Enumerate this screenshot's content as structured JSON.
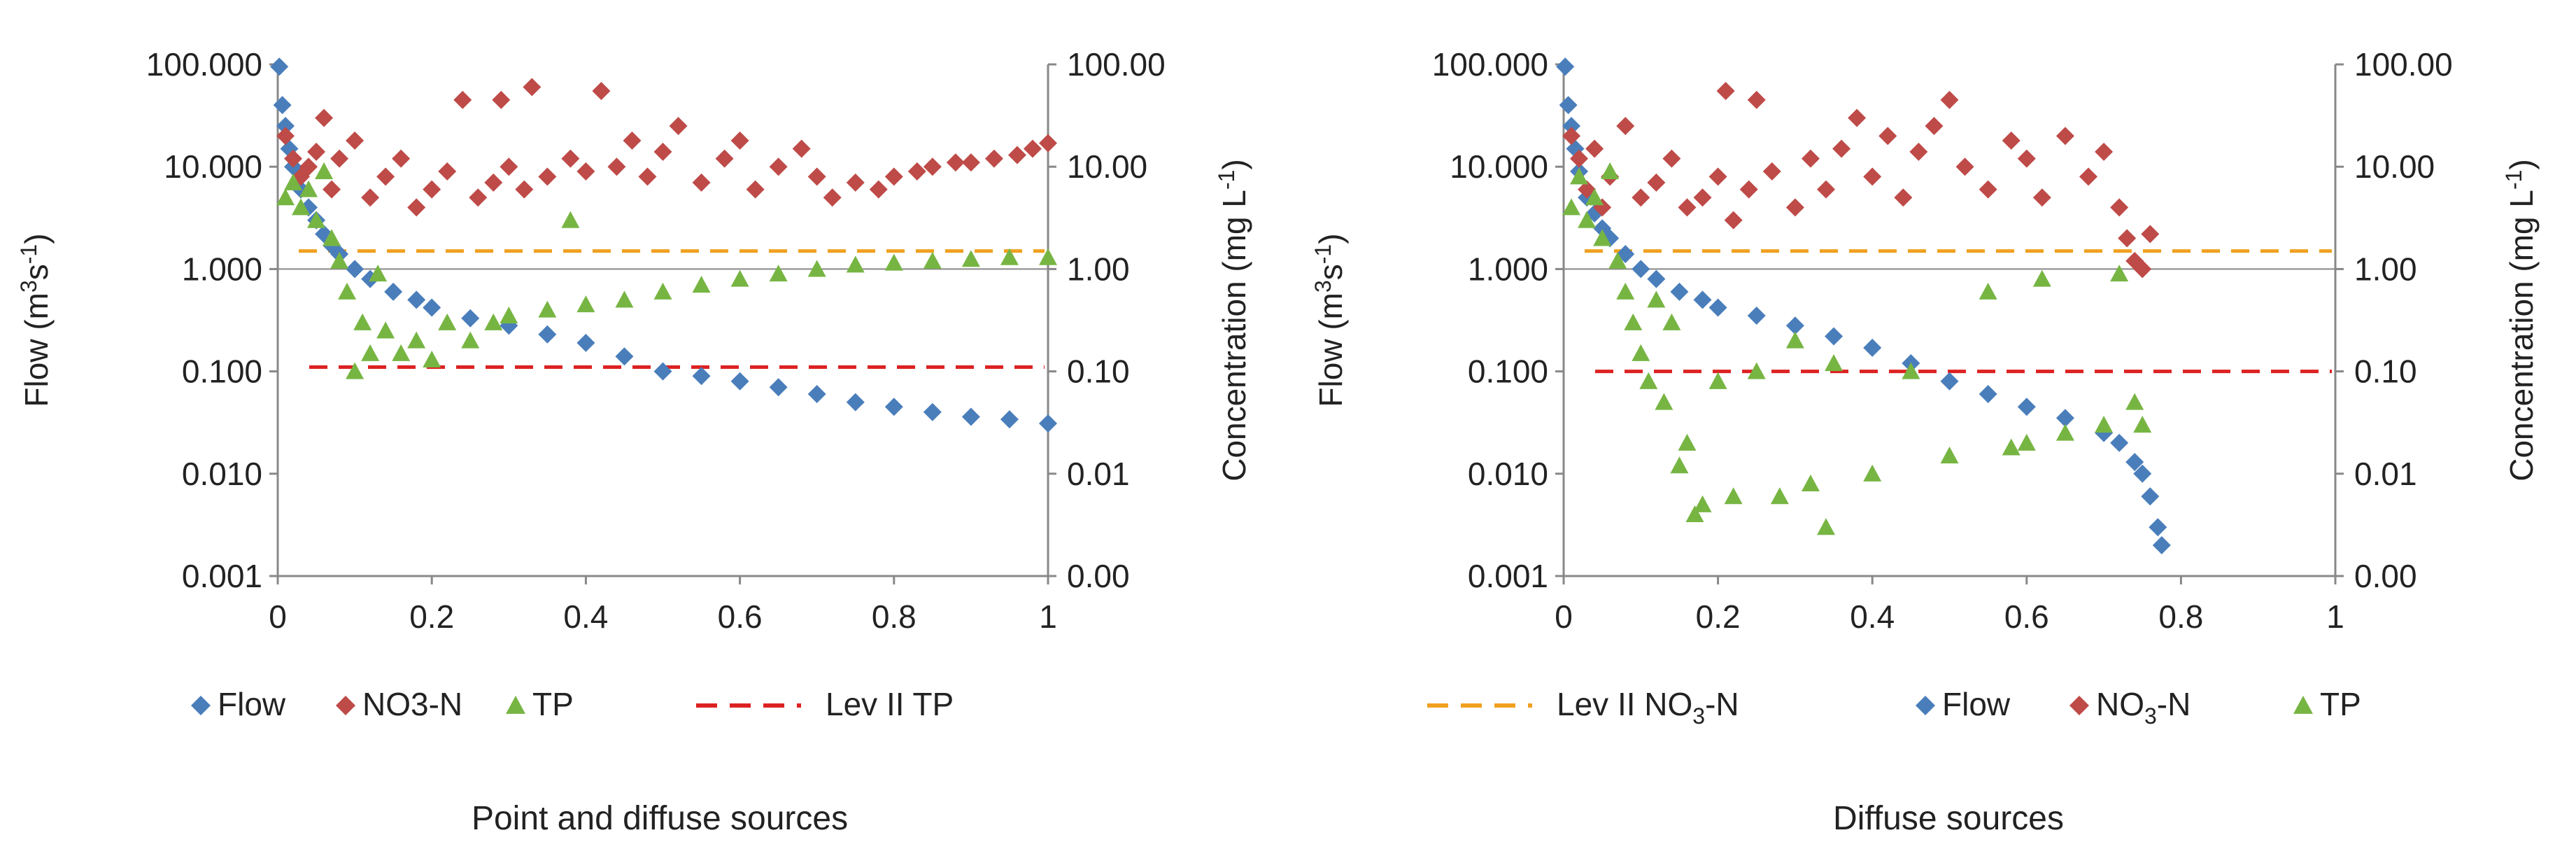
{
  "colors": {
    "flow": "#4a7ebb",
    "no3": "#be4b48",
    "tp": "#77b543",
    "tp_guideline": "#dd2222",
    "no3_guideline": "#f0a020",
    "axis": "#888888"
  },
  "chart_data": [
    {
      "type": "scatter",
      "title": "Point and diffuse sources",
      "xlabel": "",
      "ylabel_left_parts": {
        "pre": "Flow (m",
        "sup1": "3",
        "mid": "s",
        "sup2": "-1",
        "post": ")"
      },
      "ylabel_right_parts": {
        "pre": "Concentration (mg L",
        "sup": "-1",
        "post": ")"
      },
      "xlim": [
        0,
        1
      ],
      "ylim_left": [
        0.001,
        100
      ],
      "ylim_right": [
        0.001,
        100
      ],
      "y_scale": "log",
      "x_ticks": [
        "0",
        "0.2",
        "0.4",
        "0.6",
        "0.8",
        "1"
      ],
      "y_ticks_left": [
        "100.000",
        "10.000",
        "1.000",
        "0.100",
        "0.010",
        "0.001"
      ],
      "y_ticks_right": [
        "100.00",
        "10.00",
        "1.00",
        "0.10",
        "0.01",
        "0.00"
      ],
      "guideline_tp": 0.11,
      "guideline_no3": 1.5,
      "legend": [
        {
          "key": "flow",
          "label": "Flow"
        },
        {
          "key": "no3",
          "label": "NO3-N"
        },
        {
          "key": "tp",
          "label": "TP"
        },
        {
          "key": "tp_guideline",
          "label": "Lev II  TP"
        }
      ],
      "series": [
        {
          "name": "Flow",
          "points": [
            [
              0.002,
              95
            ],
            [
              0.006,
              40
            ],
            [
              0.01,
              25
            ],
            [
              0.015,
              15
            ],
            [
              0.02,
              10
            ],
            [
              0.03,
              6
            ],
            [
              0.04,
              4
            ],
            [
              0.05,
              3
            ],
            [
              0.06,
              2.2
            ],
            [
              0.07,
              1.7
            ],
            [
              0.08,
              1.4
            ],
            [
              0.1,
              1.0
            ],
            [
              0.12,
              0.8
            ],
            [
              0.15,
              0.6
            ],
            [
              0.18,
              0.5
            ],
            [
              0.2,
              0.42
            ],
            [
              0.25,
              0.33
            ],
            [
              0.3,
              0.28
            ],
            [
              0.35,
              0.23
            ],
            [
              0.4,
              0.19
            ],
            [
              0.45,
              0.14
            ],
            [
              0.5,
              0.1
            ],
            [
              0.55,
              0.09
            ],
            [
              0.6,
              0.08
            ],
            [
              0.65,
              0.07
            ],
            [
              0.7,
              0.06
            ],
            [
              0.75,
              0.05
            ],
            [
              0.8,
              0.045
            ],
            [
              0.85,
              0.04
            ],
            [
              0.9,
              0.036
            ],
            [
              0.95,
              0.034
            ],
            [
              1.0,
              0.031
            ]
          ]
        },
        {
          "name": "NO3-N",
          "points": [
            [
              0.01,
              20
            ],
            [
              0.02,
              12
            ],
            [
              0.03,
              8
            ],
            [
              0.04,
              10
            ],
            [
              0.05,
              14
            ],
            [
              0.06,
              30
            ],
            [
              0.07,
              6
            ],
            [
              0.08,
              12
            ],
            [
              0.1,
              18
            ],
            [
              0.12,
              5
            ],
            [
              0.14,
              8
            ],
            [
              0.16,
              12
            ],
            [
              0.18,
              4
            ],
            [
              0.2,
              6
            ],
            [
              0.22,
              9
            ],
            [
              0.24,
              45
            ],
            [
              0.26,
              5
            ],
            [
              0.28,
              7
            ],
            [
              0.29,
              45
            ],
            [
              0.3,
              10
            ],
            [
              0.32,
              6
            ],
            [
              0.33,
              60
            ],
            [
              0.35,
              8
            ],
            [
              0.38,
              12
            ],
            [
              0.4,
              9
            ],
            [
              0.42,
              55
            ],
            [
              0.44,
              10
            ],
            [
              0.46,
              18
            ],
            [
              0.48,
              8
            ],
            [
              0.5,
              14
            ],
            [
              0.52,
              25
            ],
            [
              0.55,
              7
            ],
            [
              0.58,
              12
            ],
            [
              0.6,
              18
            ],
            [
              0.62,
              6
            ],
            [
              0.65,
              10
            ],
            [
              0.68,
              15
            ],
            [
              0.7,
              8
            ],
            [
              0.72,
              5
            ],
            [
              0.75,
              7
            ],
            [
              0.78,
              6
            ],
            [
              0.8,
              8
            ],
            [
              0.83,
              9
            ],
            [
              0.85,
              10
            ],
            [
              0.88,
              11
            ],
            [
              0.9,
              11
            ],
            [
              0.93,
              12
            ],
            [
              0.96,
              13
            ],
            [
              0.98,
              15
            ],
            [
              1.0,
              17
            ]
          ]
        },
        {
          "name": "TP",
          "points": [
            [
              0.01,
              5
            ],
            [
              0.02,
              7
            ],
            [
              0.03,
              4
            ],
            [
              0.04,
              6
            ],
            [
              0.05,
              3
            ],
            [
              0.06,
              9
            ],
            [
              0.07,
              2
            ],
            [
              0.08,
              1.2
            ],
            [
              0.09,
              0.6
            ],
            [
              0.1,
              0.1
            ],
            [
              0.11,
              0.3
            ],
            [
              0.12,
              0.15
            ],
            [
              0.13,
              0.9
            ],
            [
              0.14,
              0.25
            ],
            [
              0.16,
              0.15
            ],
            [
              0.18,
              0.2
            ],
            [
              0.2,
              0.13
            ],
            [
              0.22,
              0.3
            ],
            [
              0.25,
              0.2
            ],
            [
              0.28,
              0.3
            ],
            [
              0.3,
              0.35
            ],
            [
              0.35,
              0.4
            ],
            [
              0.38,
              3
            ],
            [
              0.4,
              0.45
            ],
            [
              0.45,
              0.5
            ],
            [
              0.5,
              0.6
            ],
            [
              0.55,
              0.7
            ],
            [
              0.6,
              0.8
            ],
            [
              0.65,
              0.9
            ],
            [
              0.7,
              1.0
            ],
            [
              0.75,
              1.1
            ],
            [
              0.8,
              1.15
            ],
            [
              0.85,
              1.2
            ],
            [
              0.9,
              1.25
            ],
            [
              0.95,
              1.3
            ],
            [
              1.0,
              1.3
            ]
          ]
        }
      ]
    },
    {
      "type": "scatter",
      "title": "Diffuse sources",
      "xlabel": "",
      "ylabel_left_parts": {
        "pre": "Flow (m",
        "sup1": "3",
        "mid": "s",
        "sup2": "-1",
        "post": ")"
      },
      "ylabel_right_parts": {
        "pre": "Concentration (mg L",
        "sup": "-1",
        "post": ")"
      },
      "xlim": [
        0,
        1
      ],
      "ylim_left": [
        0.001,
        100
      ],
      "ylim_right": [
        0.001,
        100
      ],
      "y_scale": "log",
      "x_ticks": [
        "0",
        "0.2",
        "0.4",
        "0.6",
        "0.8",
        "1"
      ],
      "y_ticks_left": [
        "100.000",
        "10.000",
        "1.000",
        "0.100",
        "0.010",
        "0.001"
      ],
      "y_ticks_right": [
        "100.00",
        "10.00",
        "1.00",
        "0.10",
        "0.01",
        "0.00"
      ],
      "guideline_tp": 0.1,
      "guideline_no3": 1.5,
      "legend": [
        {
          "key": "no3_guideline",
          "label": "Lev II  NO",
          "sub": "3",
          "tail": "-N"
        },
        {
          "key": "flow",
          "label": "Flow"
        },
        {
          "key": "no3",
          "label": "NO",
          "sub": "3",
          "tail": "-N"
        },
        {
          "key": "tp",
          "label": "TP"
        }
      ],
      "series": [
        {
          "name": "Flow",
          "points": [
            [
              0.002,
              95
            ],
            [
              0.006,
              40
            ],
            [
              0.01,
              25
            ],
            [
              0.015,
              15
            ],
            [
              0.02,
              9
            ],
            [
              0.03,
              5
            ],
            [
              0.04,
              3.5
            ],
            [
              0.05,
              2.5
            ],
            [
              0.06,
              2
            ],
            [
              0.08,
              1.4
            ],
            [
              0.1,
              1.0
            ],
            [
              0.12,
              0.8
            ],
            [
              0.15,
              0.6
            ],
            [
              0.18,
              0.5
            ],
            [
              0.2,
              0.42
            ],
            [
              0.25,
              0.35
            ],
            [
              0.3,
              0.28
            ],
            [
              0.35,
              0.22
            ],
            [
              0.4,
              0.17
            ],
            [
              0.45,
              0.12
            ],
            [
              0.5,
              0.08
            ],
            [
              0.55,
              0.06
            ],
            [
              0.6,
              0.045
            ],
            [
              0.65,
              0.035
            ],
            [
              0.7,
              0.025
            ],
            [
              0.72,
              0.02
            ],
            [
              0.74,
              0.013
            ],
            [
              0.75,
              0.01
            ],
            [
              0.76,
              0.006
            ],
            [
              0.77,
              0.003
            ],
            [
              0.775,
              0.002
            ]
          ]
        },
        {
          "name": "NO3-N",
          "points": [
            [
              0.01,
              20
            ],
            [
              0.02,
              12
            ],
            [
              0.03,
              6
            ],
            [
              0.04,
              15
            ],
            [
              0.05,
              4
            ],
            [
              0.06,
              8
            ],
            [
              0.08,
              25
            ],
            [
              0.1,
              5
            ],
            [
              0.12,
              7
            ],
            [
              0.14,
              12
            ],
            [
              0.16,
              4
            ],
            [
              0.18,
              5
            ],
            [
              0.2,
              8
            ],
            [
              0.21,
              55
            ],
            [
              0.22,
              3
            ],
            [
              0.24,
              6
            ],
            [
              0.25,
              45
            ],
            [
              0.27,
              9
            ],
            [
              0.3,
              4
            ],
            [
              0.32,
              12
            ],
            [
              0.34,
              6
            ],
            [
              0.36,
              15
            ],
            [
              0.38,
              30
            ],
            [
              0.4,
              8
            ],
            [
              0.42,
              20
            ],
            [
              0.44,
              5
            ],
            [
              0.46,
              14
            ],
            [
              0.48,
              25
            ],
            [
              0.5,
              45
            ],
            [
              0.52,
              10
            ],
            [
              0.55,
              6
            ],
            [
              0.58,
              18
            ],
            [
              0.6,
              12
            ],
            [
              0.62,
              5
            ],
            [
              0.65,
              20
            ],
            [
              0.68,
              8
            ],
            [
              0.7,
              14
            ],
            [
              0.72,
              4
            ],
            [
              0.73,
              2
            ],
            [
              0.74,
              1.2
            ],
            [
              0.75,
              1.0
            ],
            [
              0.76,
              2.2
            ]
          ]
        },
        {
          "name": "TP",
          "points": [
            [
              0.01,
              4
            ],
            [
              0.02,
              8
            ],
            [
              0.03,
              3
            ],
            [
              0.04,
              5
            ],
            [
              0.05,
              2
            ],
            [
              0.06,
              9
            ],
            [
              0.07,
              1.2
            ],
            [
              0.08,
              0.6
            ],
            [
              0.09,
              0.3
            ],
            [
              0.1,
              0.15
            ],
            [
              0.11,
              0.08
            ],
            [
              0.12,
              0.5
            ],
            [
              0.13,
              0.05
            ],
            [
              0.14,
              0.3
            ],
            [
              0.15,
              0.012
            ],
            [
              0.16,
              0.02
            ],
            [
              0.17,
              0.004
            ],
            [
              0.18,
              0.005
            ],
            [
              0.2,
              0.08
            ],
            [
              0.22,
              0.006
            ],
            [
              0.25,
              0.1
            ],
            [
              0.28,
              0.006
            ],
            [
              0.3,
              0.2
            ],
            [
              0.32,
              0.008
            ],
            [
              0.34,
              0.003
            ],
            [
              0.35,
              0.12
            ],
            [
              0.4,
              0.01
            ],
            [
              0.45,
              0.1
            ],
            [
              0.5,
              0.015
            ],
            [
              0.55,
              0.6
            ],
            [
              0.58,
              0.018
            ],
            [
              0.6,
              0.02
            ],
            [
              0.62,
              0.8
            ],
            [
              0.65,
              0.025
            ],
            [
              0.7,
              0.03
            ],
            [
              0.72,
              0.9
            ],
            [
              0.74,
              0.05
            ],
            [
              0.75,
              0.03
            ]
          ]
        }
      ]
    }
  ]
}
